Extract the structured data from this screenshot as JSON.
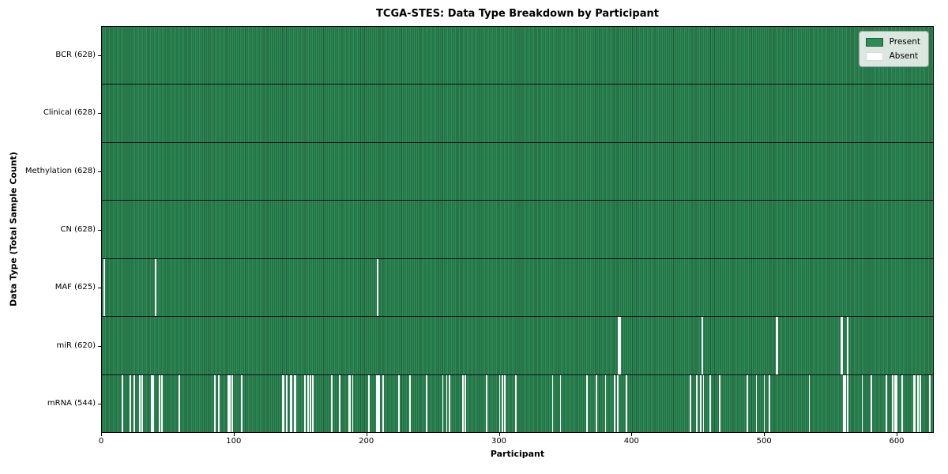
{
  "chart_data": {
    "type": "heatmap",
    "title": "TCGA-STES: Data Type Breakdown by Participant",
    "xlabel": "Participant",
    "ylabel": "Data Type (Total Sample Count)",
    "n_participants": 628,
    "x_ticks": [
      0,
      100,
      200,
      300,
      400,
      500,
      600
    ],
    "grid": false,
    "colors": {
      "present": "#2E8B57",
      "present_edge": "#1f5c3a",
      "absent": "#ffffff",
      "row_separator": "#101010"
    },
    "legend": {
      "position": "upper right",
      "items": [
        {
          "label": "Present",
          "color": "#2E8B57"
        },
        {
          "label": "Absent",
          "color": "#ffffff"
        }
      ]
    },
    "rows": [
      {
        "name": "BCR",
        "label": "BCR (628)",
        "present_count": 628,
        "absent_participants": []
      },
      {
        "name": "Clinical",
        "label": "Clinical (628)",
        "present_count": 628,
        "absent_participants": []
      },
      {
        "name": "Methylation",
        "label": "Methylation (628)",
        "present_count": 628,
        "absent_participants": []
      },
      {
        "name": "CN",
        "label": "CN (628)",
        "present_count": 628,
        "absent_participants": []
      },
      {
        "name": "MAF",
        "label": "MAF (625)",
        "present_count": 625,
        "absent_participants": [
          1,
          40,
          208
        ]
      },
      {
        "name": "miR",
        "label": "miR (620)",
        "present_count": 620,
        "absent_participants": [
          390,
          391,
          453,
          509,
          510,
          558,
          559,
          563
        ]
      },
      {
        "name": "mRNA",
        "label": "mRNA (544)",
        "present_count": 544,
        "absent_participants": [
          15,
          21,
          24,
          28,
          30,
          37,
          38,
          43,
          45,
          58,
          85,
          88,
          95,
          96,
          98,
          105,
          136,
          137,
          139,
          142,
          143,
          145,
          146,
          153,
          155,
          157,
          159,
          173,
          179,
          186,
          187,
          189,
          201,
          207,
          208,
          209,
          212,
          224,
          232,
          245,
          257,
          260,
          262,
          272,
          274,
          290,
          300,
          302,
          304,
          312,
          340,
          346,
          366,
          373,
          380,
          387,
          389,
          396,
          444,
          449,
          452,
          454,
          459,
          466,
          487,
          494,
          500,
          504,
          534,
          560,
          561,
          563,
          574,
          581,
          592,
          597,
          599,
          600,
          604,
          613,
          614,
          616,
          618,
          625
        ]
      }
    ]
  }
}
